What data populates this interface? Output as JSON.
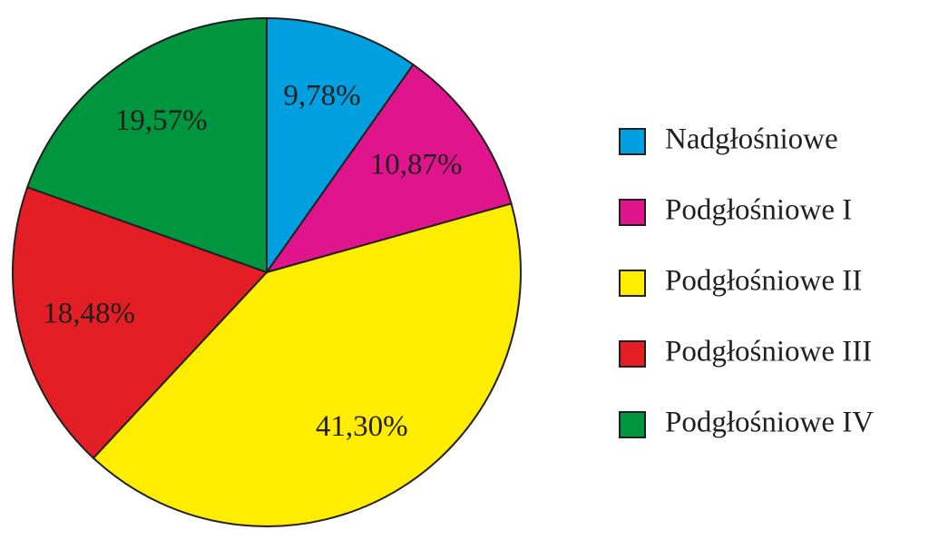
{
  "chart_data": {
    "type": "pie",
    "categories": [
      "Nadgłośniowe",
      "Podgłośniowe I",
      "Podgłośniowe II",
      "Podgłośniowe III",
      "Podgłośniowe IV"
    ],
    "values": [
      9.78,
      10.87,
      41.3,
      18.48,
      19.57
    ],
    "value_labels": [
      "9,78%",
      "10,87%",
      "41,30%",
      "18,48%",
      "19,57%"
    ],
    "colors": [
      "#00a0e0",
      "#e0148c",
      "#ffed00",
      "#e31e24",
      "#009640"
    ],
    "legend": "right"
  }
}
